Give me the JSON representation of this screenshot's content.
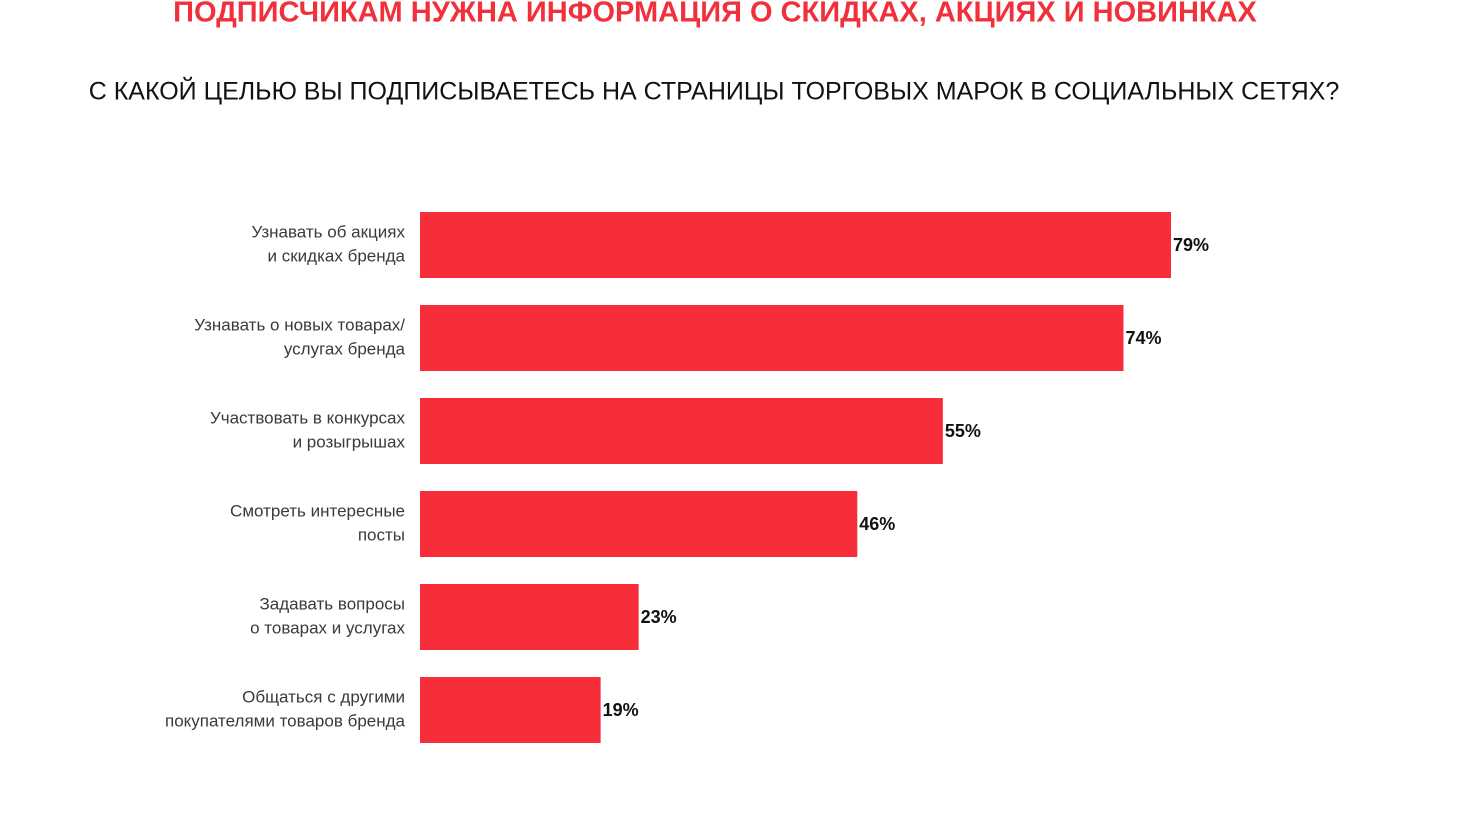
{
  "chart_data": {
    "type": "hbar",
    "title": "ПОДПИСЧИКАМ НУЖНА ИНФОРМАЦИЯ О СКИДКАХ, АКЦИЯХ И НОВИНКАХ",
    "subtitle": "С КАКОЙ ЦЕЛЬЮ ВЫ ПОДПИСЫВАЕТЕСЬ НА СТРАНИЦЫ ТОРГОВЫХ МАРОК В СОЦИАЛЬНЫХ СЕТЯХ?",
    "categories": [
      [
        "Узнавать об акциях",
        "и скидках бренда"
      ],
      [
        "Узнавать о новых товарах/",
        "услугах бренда"
      ],
      [
        "Участвовать в конкурсах",
        "и розыгрышах"
      ],
      [
        "Смотреть интересные",
        "посты"
      ],
      [
        "Задавать вопросы",
        "о товарах и услугах"
      ],
      [
        "Общаться с другими",
        "покупателями товаров бренда"
      ]
    ],
    "values": [
      79,
      74,
      55,
      46,
      23,
      19
    ],
    "value_labels": [
      "79%",
      "74%",
      "55%",
      "46%",
      "23%",
      "19%"
    ],
    "color": "#f82d3a"
  }
}
